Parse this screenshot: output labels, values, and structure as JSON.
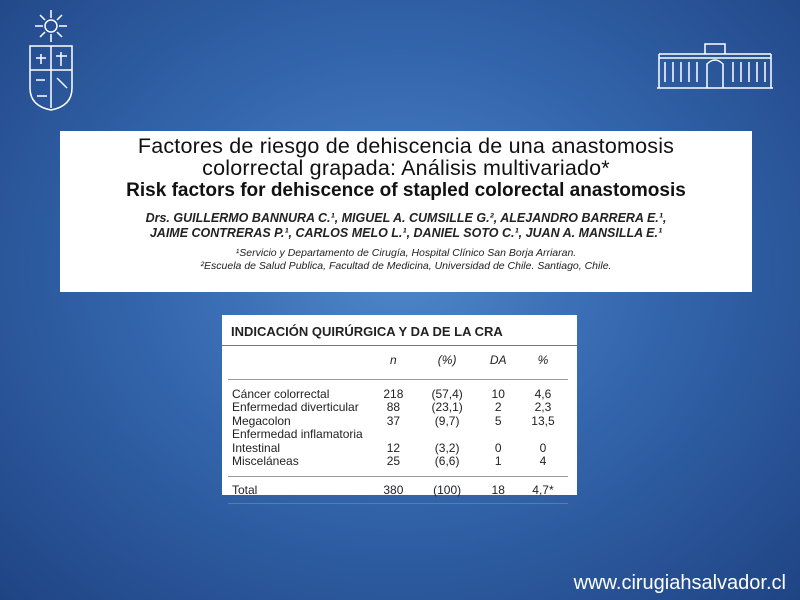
{
  "paper": {
    "title_lines": [
      "Factores de riesgo de dehiscencia de una anastomosis",
      "colorrectal grapada: Análisis multivariado*"
    ],
    "english_title": "Risk factors for dehiscence of stapled colorectal anastomosis",
    "authors": [
      "Drs. GUILLERMO BANNURA C.¹, MIGUEL A. CUMSILLE G.², ALEJANDRO BARRERA E.¹,",
      "JAIME CONTRERAS P.¹, CARLOS MELO L.¹, DANIEL SOTO C.¹, JUAN A. MANSILLA E.¹"
    ],
    "affiliations": [
      "¹Servicio y Departamento de Cirugía, Hospital Clínico San Borja Arriaran.",
      "²Escuela de Salud Publica, Facultad de Medicina, Universidad de Chile. Santiago, Chile."
    ]
  },
  "table": {
    "title": "INDICACIÓN QUIRÚRGICA Y DA DE LA CRA",
    "header": [
      "n",
      "(%)",
      "DA",
      "%"
    ],
    "rows": [
      [
        "Cáncer colorrectal",
        "218",
        "(57,4)",
        "10",
        "4,6"
      ],
      [
        "Enfermedad diverticular",
        "88",
        "(23,1)",
        "2",
        "2,3"
      ],
      [
        "Megacolon",
        "37",
        "(9,7)",
        "5",
        "13,5"
      ],
      [
        "Enfermedad inflamatoria"
      ],
      [
        "Intestinal",
        "12",
        "(3,2)",
        "0",
        "0"
      ],
      [
        "Misceláneas",
        "25",
        "(6,6)",
        "1",
        "4"
      ]
    ],
    "total": [
      "Total",
      "380",
      "(100)",
      "18",
      "4,7*"
    ]
  },
  "footer": {
    "url": "www.cirugiahsalvador.cl"
  }
}
